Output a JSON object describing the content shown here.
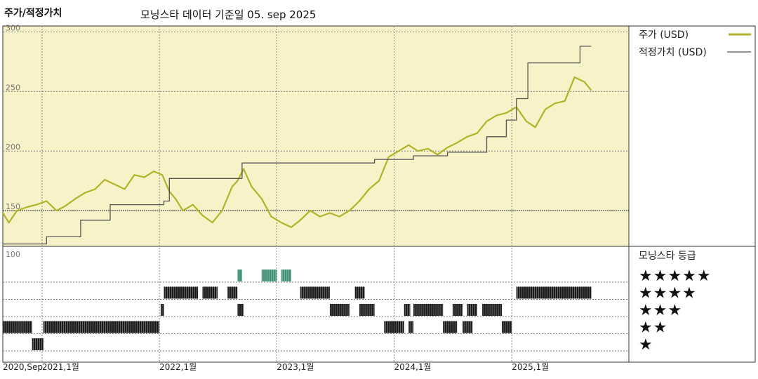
{
  "title": "주가/적정가치",
  "subtitle": "모닝스타 데이터 기준일 05. sep 2025",
  "colors": {
    "price": "#b2b32a",
    "fair": "#555555",
    "rating_top": "#3f8f77",
    "rating_bar": "#1a1a1a",
    "bg_top": "#f7f2c8"
  },
  "legend": {
    "price_label": "주가 (USD)",
    "fair_label": "적정가치 (USD)"
  },
  "rating_legend": {
    "title": "모닝스타 등급",
    "stars": [
      "★★★★★",
      "★★★★",
      "★★★",
      "★★",
      "★"
    ]
  },
  "chart_data": {
    "type": "line",
    "y_ticks": [
      "300",
      "250",
      "200",
      "150"
    ],
    "ylim": [
      120,
      305
    ],
    "rating_tick": "100",
    "x_ticks": [
      {
        "date": "2020-09-01",
        "label": "2020,Sep"
      },
      {
        "date": "2021-01-01",
        "label": "2021,1월"
      },
      {
        "date": "2022-01-01",
        "label": "2022,1월"
      },
      {
        "date": "2023-01-01",
        "label": "2023,1월"
      },
      {
        "date": "2024-01-01",
        "label": "2024,1월"
      },
      {
        "date": "2025-01-01",
        "label": "2025,1월"
      }
    ],
    "xlim": [
      "2020-09-01",
      "2025-12-31"
    ],
    "series": [
      {
        "name": "주가 (USD)",
        "type": "line",
        "points": [
          [
            "2020-09-01",
            148
          ],
          [
            "2020-09-20",
            140
          ],
          [
            "2020-10-15",
            150
          ],
          [
            "2020-11-15",
            153
          ],
          [
            "2020-12-15",
            155
          ],
          [
            "2021-01-15",
            158
          ],
          [
            "2021-02-15",
            150
          ],
          [
            "2021-03-15",
            154
          ],
          [
            "2021-04-15",
            160
          ],
          [
            "2021-05-15",
            165
          ],
          [
            "2021-06-15",
            168
          ],
          [
            "2021-07-15",
            176
          ],
          [
            "2021-08-15",
            172
          ],
          [
            "2021-09-15",
            168
          ],
          [
            "2021-10-15",
            180
          ],
          [
            "2021-11-15",
            178
          ],
          [
            "2021-12-15",
            183
          ],
          [
            "2022-01-10",
            180
          ],
          [
            "2022-02-01",
            166
          ],
          [
            "2022-02-20",
            160
          ],
          [
            "2022-03-15",
            150
          ],
          [
            "2022-04-15",
            155
          ],
          [
            "2022-05-15",
            146
          ],
          [
            "2022-06-15",
            140
          ],
          [
            "2022-07-15",
            150
          ],
          [
            "2022-08-15",
            170
          ],
          [
            "2022-09-01",
            175
          ],
          [
            "2022-09-20",
            185
          ],
          [
            "2022-10-15",
            170
          ],
          [
            "2022-11-15",
            160
          ],
          [
            "2022-12-15",
            145
          ],
          [
            "2023-01-15",
            140
          ],
          [
            "2023-02-15",
            136
          ],
          [
            "2023-03-15",
            142
          ],
          [
            "2023-04-15",
            150
          ],
          [
            "2023-05-15",
            145
          ],
          [
            "2023-06-15",
            148
          ],
          [
            "2023-07-15",
            145
          ],
          [
            "2023-08-15",
            150
          ],
          [
            "2023-09-15",
            158
          ],
          [
            "2023-10-15",
            168
          ],
          [
            "2023-11-15",
            175
          ],
          [
            "2023-12-15",
            195
          ],
          [
            "2024-01-15",
            200
          ],
          [
            "2024-02-15",
            205
          ],
          [
            "2024-03-15",
            200
          ],
          [
            "2024-04-15",
            202
          ],
          [
            "2024-05-15",
            197
          ],
          [
            "2024-06-15",
            203
          ],
          [
            "2024-07-15",
            207
          ],
          [
            "2024-08-15",
            212
          ],
          [
            "2024-09-15",
            215
          ],
          [
            "2024-10-15",
            225
          ],
          [
            "2024-11-15",
            230
          ],
          [
            "2024-12-15",
            232
          ],
          [
            "2025-01-15",
            237
          ],
          [
            "2025-02-15",
            225
          ],
          [
            "2025-03-15",
            220
          ],
          [
            "2025-04-15",
            235
          ],
          [
            "2025-05-15",
            240
          ],
          [
            "2025-06-15",
            242
          ],
          [
            "2025-07-15",
            262
          ],
          [
            "2025-08-15",
            258
          ],
          [
            "2025-09-05",
            251
          ]
        ]
      },
      {
        "name": "적정가치 (USD)",
        "type": "step",
        "points": [
          [
            "2020-09-01",
            122
          ],
          [
            "2021-01-15",
            122
          ],
          [
            "2021-01-15",
            128
          ],
          [
            "2021-05-01",
            128
          ],
          [
            "2021-05-01",
            142
          ],
          [
            "2021-08-01",
            142
          ],
          [
            "2021-08-01",
            155
          ],
          [
            "2022-01-15",
            155
          ],
          [
            "2022-01-15",
            158
          ],
          [
            "2022-02-01",
            158
          ],
          [
            "2022-02-01",
            177
          ],
          [
            "2022-09-15",
            177
          ],
          [
            "2022-09-15",
            190
          ],
          [
            "2023-11-01",
            190
          ],
          [
            "2023-11-01",
            193
          ],
          [
            "2024-03-01",
            193
          ],
          [
            "2024-03-01",
            196
          ],
          [
            "2024-06-15",
            196
          ],
          [
            "2024-06-15",
            199
          ],
          [
            "2024-10-15",
            199
          ],
          [
            "2024-10-15",
            212
          ],
          [
            "2024-12-15",
            212
          ],
          [
            "2024-12-15",
            226
          ],
          [
            "2025-01-15",
            226
          ],
          [
            "2025-01-15",
            244
          ],
          [
            "2025-02-20",
            244
          ],
          [
            "2025-02-20",
            274
          ],
          [
            "2025-08-01",
            274
          ],
          [
            "2025-08-01",
            288
          ],
          [
            "2025-09-05",
            288
          ]
        ]
      }
    ],
    "ratings": [
      {
        "stars": 5,
        "periods": [
          [
            "2022-09-01",
            "2022-09-15"
          ],
          [
            "2022-11-15",
            "2023-01-01"
          ],
          [
            "2023-01-15",
            "2023-02-15"
          ]
        ]
      },
      {
        "stars": 4,
        "periods": [
          [
            "2022-01-15",
            "2022-05-01"
          ],
          [
            "2022-05-15",
            "2022-07-01"
          ],
          [
            "2022-08-01",
            "2022-09-01"
          ],
          [
            "2023-03-15",
            "2023-06-15"
          ],
          [
            "2023-09-01",
            "2023-10-01"
          ],
          [
            "2025-01-15",
            "2025-09-05"
          ]
        ]
      },
      {
        "stars": 3,
        "periods": [
          [
            "2022-01-05",
            "2022-01-15"
          ],
          [
            "2022-09-01",
            "2022-09-20"
          ],
          [
            "2023-06-15",
            "2023-08-15"
          ],
          [
            "2023-09-15",
            "2023-11-01"
          ],
          [
            "2024-02-01",
            "2024-02-20"
          ],
          [
            "2024-03-01",
            "2024-06-01"
          ],
          [
            "2024-07-01",
            "2024-08-01"
          ],
          [
            "2024-08-15",
            "2024-09-15"
          ],
          [
            "2024-10-01",
            "2024-12-01"
          ]
        ]
      },
      {
        "stars": 2,
        "periods": [
          [
            "2020-09-01",
            "2020-12-01"
          ],
          [
            "2021-01-05",
            "2022-01-01"
          ],
          [
            "2023-12-01",
            "2024-02-01"
          ],
          [
            "2024-02-15",
            "2024-03-01"
          ],
          [
            "2024-06-01",
            "2024-07-15"
          ],
          [
            "2024-08-01",
            "2024-09-01"
          ],
          [
            "2024-12-01",
            "2025-01-01"
          ]
        ]
      },
      {
        "stars": 1,
        "periods": [
          [
            "2020-12-01",
            "2021-01-05"
          ]
        ]
      }
    ]
  }
}
